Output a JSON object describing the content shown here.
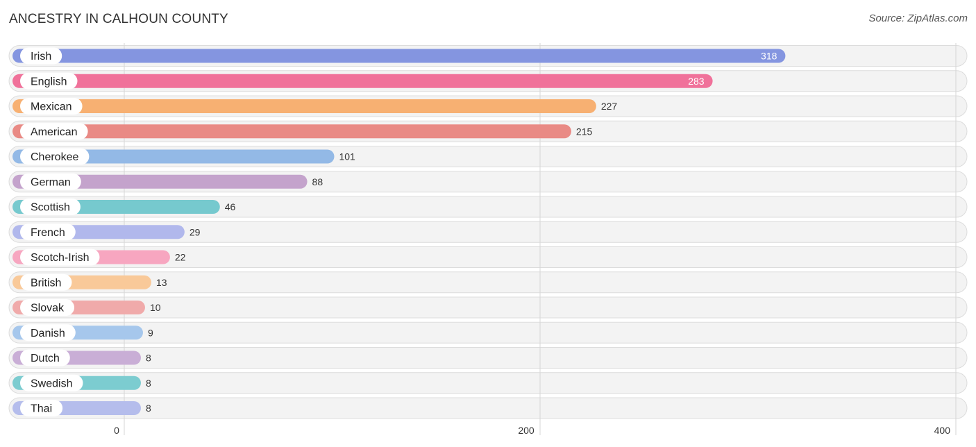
{
  "header": {
    "title": "ANCESTRY IN CALHOUN COUNTY",
    "source": "Source: ZipAtlas.com"
  },
  "chart_data": {
    "type": "bar",
    "orientation": "horizontal",
    "title": "ANCESTRY IN CALHOUN COUNTY",
    "xlabel": "",
    "ylabel": "",
    "xlim": [
      0,
      400
    ],
    "xticks": [
      0,
      200,
      400
    ],
    "grid": true,
    "categories": [
      "Irish",
      "English",
      "Mexican",
      "American",
      "Cherokee",
      "German",
      "Scottish",
      "French",
      "Scotch-Irish",
      "British",
      "Slovak",
      "Danish",
      "Dutch",
      "Swedish",
      "Thai"
    ],
    "values": [
      318,
      283,
      227,
      215,
      101,
      88,
      46,
      29,
      22,
      13,
      10,
      9,
      8,
      8,
      8
    ],
    "colors": [
      "#8495e0",
      "#f0719a",
      "#f7b072",
      "#e98a85",
      "#93b9e6",
      "#c4a3cc",
      "#76c9ce",
      "#b1b8ec",
      "#f7a6c0",
      "#f9c999",
      "#f0aaaa",
      "#a6c7ec",
      "#c9aed6",
      "#7cccd0",
      "#b5bdec"
    ],
    "value_label_inside": [
      true,
      true,
      false,
      false,
      false,
      false,
      false,
      false,
      false,
      false,
      false,
      false,
      false,
      false,
      false
    ]
  }
}
